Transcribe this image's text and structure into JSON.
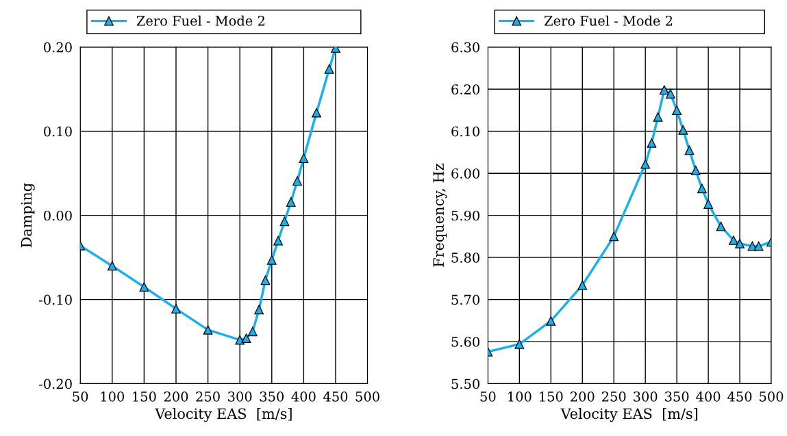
{
  "chart_data": [
    {
      "type": "line",
      "xlabel": "Velocity EAS  [m/s]",
      "ylabel": "Damping",
      "x": [
        50,
        100,
        150,
        200,
        250,
        300,
        310,
        320,
        330,
        340,
        350,
        360,
        370,
        380,
        390,
        400,
        420,
        440,
        450
      ],
      "series": [
        {
          "name": "Zero Fuel - Mode 2",
          "color": "#1ab0ec",
          "values": [
            -0.036,
            -0.06,
            -0.085,
            -0.111,
            -0.136,
            -0.148,
            -0.146,
            -0.138,
            -0.112,
            -0.077,
            -0.053,
            -0.03,
            -0.007,
            0.016,
            0.041,
            0.068,
            0.122,
            0.174,
            0.199
          ]
        }
      ],
      "xlim": [
        50,
        500
      ],
      "xticks": [
        50,
        100,
        150,
        200,
        250,
        300,
        350,
        400,
        450,
        500
      ],
      "ylim": [
        -0.2,
        0.2
      ],
      "yticks": [
        {
          "value": -0.2,
          "label": "-0.20"
        },
        {
          "value": -0.1,
          "label": "-0.10"
        },
        {
          "value": 0,
          "label": "0.00"
        },
        {
          "value": 0.1,
          "label": "0.10"
        },
        {
          "value": 0.2,
          "label": "0.20"
        }
      ],
      "grid": true,
      "legend": "top",
      "marker": "triangle",
      "line_style": "solid"
    },
    {
      "type": "line",
      "xlabel": "Velocity EAS  [m/s]",
      "ylabel": "Frequency, Hz",
      "x": [
        50,
        100,
        150,
        200,
        250,
        300,
        310,
        320,
        330,
        340,
        350,
        360,
        370,
        380,
        390,
        400,
        420,
        440,
        450,
        470,
        480,
        500
      ],
      "series": [
        {
          "name": "Zero Fuel - Mode 2",
          "color": "#1ab0ec",
          "values": [
            5.576,
            5.594,
            5.649,
            5.734,
            5.85,
            6.022,
            6.072,
            6.134,
            6.198,
            6.189,
            6.15,
            6.103,
            6.055,
            6.007,
            5.964,
            5.927,
            5.874,
            5.841,
            5.833,
            5.827,
            5.827,
            5.837
          ]
        }
      ],
      "xlim": [
        50,
        500
      ],
      "xticks": [
        50,
        100,
        150,
        200,
        250,
        300,
        350,
        400,
        450,
        500
      ],
      "ylim": [
        5.5,
        6.3
      ],
      "yticks": [
        {
          "value": 5.5,
          "label": "5.50"
        },
        {
          "value": 5.6,
          "label": "5.60"
        },
        {
          "value": 5.7,
          "label": "5.70"
        },
        {
          "value": 5.8,
          "label": "5.80"
        },
        {
          "value": 5.9,
          "label": "5.90"
        },
        {
          "value": 6.0,
          "label": "6.00"
        },
        {
          "value": 6.1,
          "label": "6.10"
        },
        {
          "value": 6.2,
          "label": "6.20"
        },
        {
          "value": 6.3,
          "label": "6.30"
        }
      ],
      "grid": true,
      "legend": "top",
      "marker": "triangle",
      "line_style": "solid"
    }
  ]
}
